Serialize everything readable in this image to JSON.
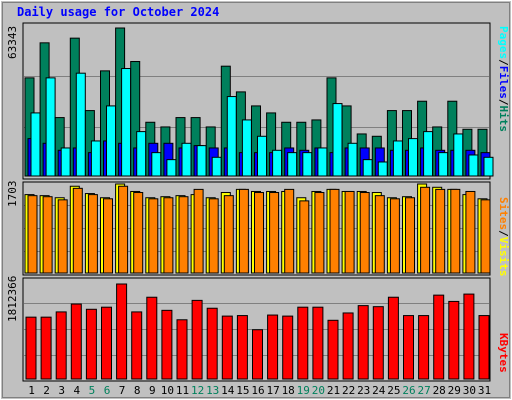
{
  "title": "Daily usage for October 2024",
  "colors": {
    "hits": "#00805c",
    "files": "#0000ff",
    "pages": "#00ffff",
    "visits": "#ffff00",
    "sites": "#ff8000",
    "kbytes": "#ff0000",
    "weekend": "#00805c",
    "weekday": "#000000",
    "title": "#0000ff"
  },
  "legend_top": {
    "hits": "Hits",
    "files": "Files",
    "pages": "Pages",
    "sep": "/"
  },
  "legend_mid": {
    "visits": "Visits",
    "sites": "Sites",
    "sep": "/"
  },
  "legend_bottom": {
    "kbytes": "KBytes"
  },
  "chart_data": [
    {
      "type": "bar",
      "panel": "hits-files-pages",
      "ymax_label": "63343",
      "ylim": [
        0,
        63343
      ],
      "categories": [
        "1",
        "2",
        "3",
        "4",
        "5",
        "6",
        "7",
        "8",
        "9",
        "10",
        "11",
        "12",
        "13",
        "14",
        "15",
        "16",
        "17",
        "18",
        "19",
        "20",
        "21",
        "22",
        "23",
        "24",
        "25",
        "26",
        "27",
        "28",
        "29",
        "30",
        "31"
      ],
      "series": [
        {
          "name": "Hits",
          "values": [
            42000,
            57000,
            25000,
            59000,
            28000,
            45000,
            63343,
            49000,
            23000,
            21000,
            25000,
            25000,
            21000,
            47000,
            36000,
            30000,
            27000,
            23000,
            23000,
            24000,
            42000,
            30000,
            18000,
            17000,
            28000,
            28000,
            32000,
            21000,
            32000,
            20000,
            20000
          ]
        },
        {
          "name": "Files",
          "values": [
            16000,
            14000,
            11000,
            12000,
            10000,
            15000,
            14000,
            12000,
            14000,
            14000,
            12000,
            13000,
            12000,
            12000,
            10000,
            10000,
            10000,
            12000,
            11000,
            12000,
            10000,
            12000,
            12000,
            12000,
            11000,
            11000,
            12000,
            11000,
            11000,
            11000,
            10000
          ]
        },
        {
          "name": "Pages",
          "values": [
            27000,
            42000,
            12000,
            44000,
            15000,
            30000,
            46000,
            19000,
            10000,
            7000,
            14000,
            13000,
            8000,
            34000,
            24000,
            17000,
            11000,
            10000,
            10000,
            12000,
            31000,
            14000,
            7000,
            6000,
            15000,
            16000,
            19000,
            10000,
            18000,
            9000,
            8000
          ]
        }
      ]
    },
    {
      "type": "bar",
      "panel": "visits-sites",
      "ymax_label": "1703",
      "ylim": [
        0,
        1703
      ],
      "categories": [
        "1",
        "2",
        "3",
        "4",
        "5",
        "6",
        "7",
        "8",
        "9",
        "10",
        "11",
        "12",
        "13",
        "14",
        "15",
        "16",
        "17",
        "18",
        "19",
        "20",
        "21",
        "22",
        "23",
        "24",
        "25",
        "26",
        "27",
        "28",
        "29",
        "30",
        "31"
      ],
      "series": [
        {
          "name": "Visits",
          "values": [
            1500,
            1480,
            1440,
            1660,
            1520,
            1440,
            1703,
            1560,
            1440,
            1460,
            1480,
            1500,
            1440,
            1540,
            1600,
            1560,
            1560,
            1560,
            1440,
            1560,
            1600,
            1560,
            1560,
            1540,
            1440,
            1460,
            1703,
            1640,
            1600,
            1500,
            1420
          ]
        },
        {
          "name": "Sites",
          "values": [
            1480,
            1460,
            1400,
            1620,
            1500,
            1420,
            1660,
            1540,
            1420,
            1440,
            1460,
            1600,
            1420,
            1480,
            1600,
            1540,
            1540,
            1600,
            1380,
            1540,
            1600,
            1560,
            1540,
            1480,
            1420,
            1440,
            1640,
            1600,
            1600,
            1560,
            1400
          ]
        }
      ]
    },
    {
      "type": "bar",
      "panel": "kbytes",
      "ymax_label": "1812366",
      "ylim": [
        0,
        1812366
      ],
      "categories": [
        "1",
        "2",
        "3",
        "4",
        "5",
        "6",
        "7",
        "8",
        "9",
        "10",
        "11",
        "12",
        "13",
        "14",
        "15",
        "16",
        "17",
        "18",
        "19",
        "20",
        "21",
        "22",
        "23",
        "24",
        "25",
        "26",
        "27",
        "28",
        "29",
        "30",
        "31"
      ],
      "series": [
        {
          "name": "KBytes",
          "values": [
            1180000,
            1180000,
            1280000,
            1430000,
            1330000,
            1370000,
            1812366,
            1280000,
            1560000,
            1310000,
            1130000,
            1500000,
            1350000,
            1200000,
            1210000,
            940000,
            1220000,
            1200000,
            1370000,
            1370000,
            1120000,
            1260000,
            1400000,
            1380000,
            1560000,
            1210000,
            1210000,
            1600000,
            1480000,
            1620000,
            1210000
          ]
        }
      ]
    }
  ]
}
